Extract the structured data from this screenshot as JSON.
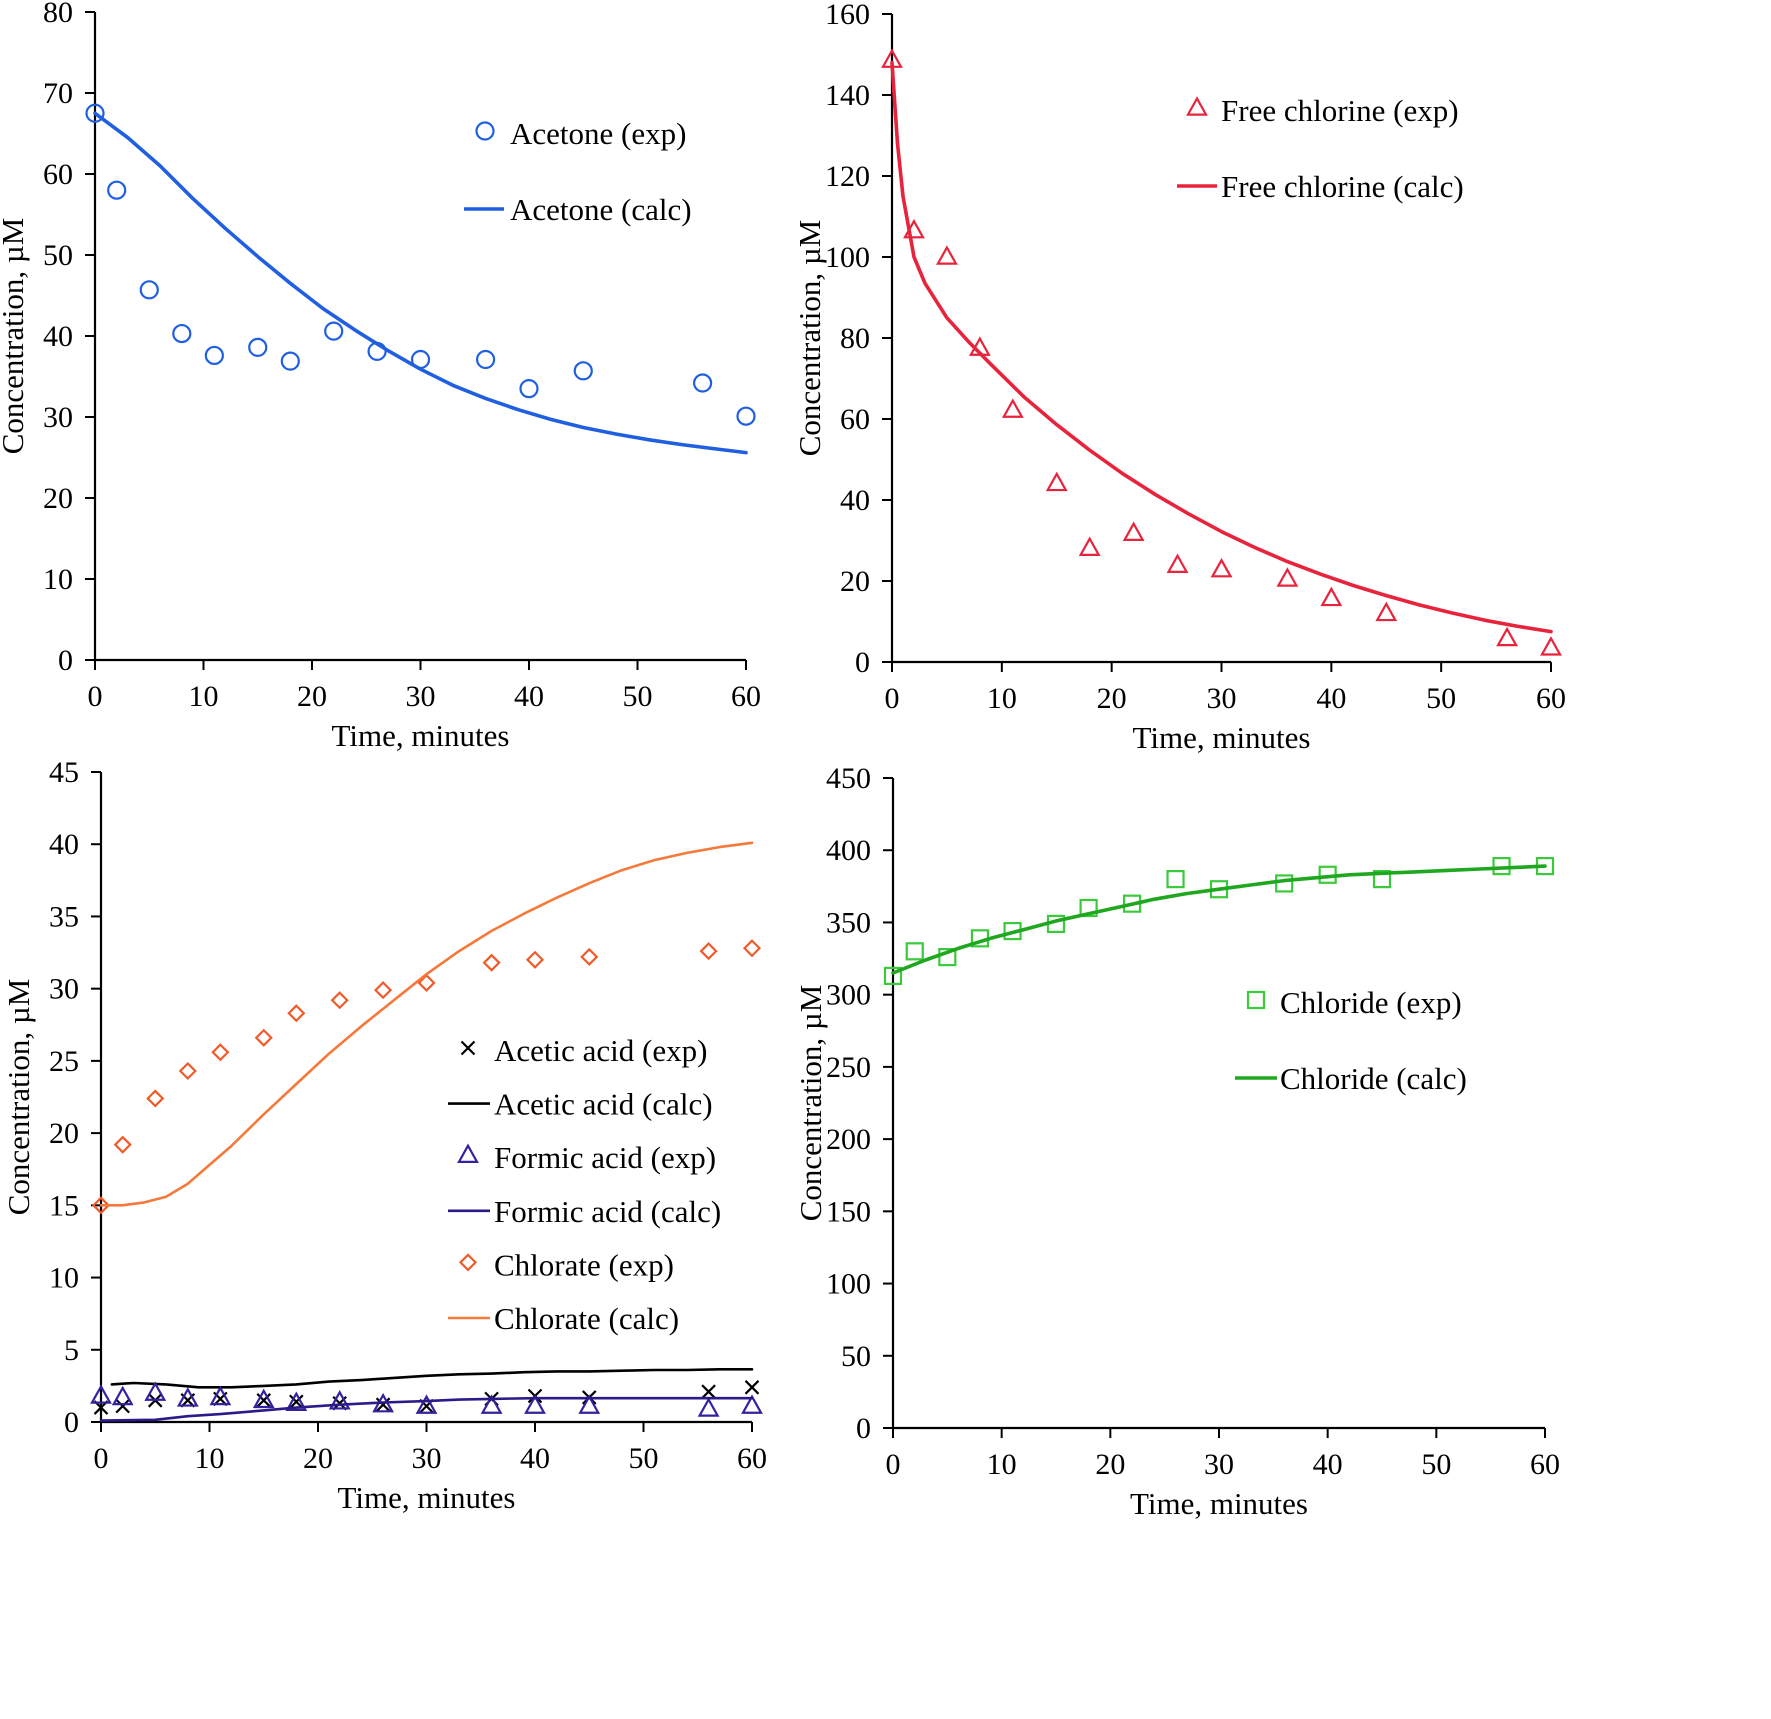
{
  "chart_data": [
    {
      "type": "scatter",
      "xlabel": "Time, minutes",
      "ylabel": "Concentration, µM",
      "xlim": [
        0,
        60
      ],
      "ylim": [
        0,
        80
      ],
      "xticks": [
        0,
        10,
        20,
        30,
        40,
        50,
        60
      ],
      "yticks": [
        0,
        10,
        20,
        30,
        40,
        50,
        60,
        70,
        80
      ],
      "legend_position": "top-right",
      "grid": false,
      "series": [
        {
          "name": "Acetone (exp)",
          "kind": "markers",
          "marker": "circle",
          "color": "#1f5fe0",
          "x": [
            0,
            2,
            5,
            8,
            11,
            15,
            18,
            22,
            26,
            30,
            36,
            40,
            45,
            56,
            60
          ],
          "y": [
            67.5,
            58,
            45.7,
            40.3,
            37.6,
            38.6,
            36.9,
            40.6,
            38.1,
            37.1,
            37.1,
            33.5,
            35.7,
            34.2,
            30.1
          ]
        },
        {
          "name": "Acetone (calc)",
          "kind": "line",
          "color": "#1f5fe0",
          "x": [
            0,
            3,
            6,
            9,
            12,
            15,
            18,
            21,
            24,
            27,
            30,
            33,
            36,
            39,
            42,
            45,
            48,
            51,
            54,
            57,
            60
          ],
          "y": [
            67.5,
            64.5,
            61,
            57,
            53.3,
            49.8,
            46.5,
            43.4,
            40.7,
            38.2,
            35.9,
            33.9,
            32.3,
            30.9,
            29.7,
            28.7,
            27.9,
            27.2,
            26.6,
            26.1,
            25.6
          ]
        }
      ]
    },
    {
      "type": "scatter",
      "xlabel": "Time, minutes",
      "ylabel": "Concentration, µM",
      "xlim": [
        0,
        60
      ],
      "ylim": [
        0,
        160
      ],
      "xticks": [
        0,
        10,
        20,
        30,
        40,
        50,
        60
      ],
      "yticks": [
        0,
        20,
        40,
        60,
        80,
        100,
        120,
        140,
        160
      ],
      "legend_position": "top-right",
      "grid": false,
      "series": [
        {
          "name": "Free chlorine (exp)",
          "kind": "markers",
          "marker": "triangle",
          "color": "#e8233c",
          "x": [
            0,
            2,
            5,
            8,
            11,
            15,
            18,
            22,
            26,
            30,
            36,
            40,
            45,
            56,
            60
          ],
          "y": [
            148.6,
            106.5,
            100,
            77.5,
            62.2,
            44.1,
            28.1,
            31.8,
            23.9,
            22.8,
            20.5,
            15.7,
            12,
            5.8,
            3.5
          ]
        },
        {
          "name": "Free chlorine (calc)",
          "kind": "line",
          "color": "#e8233c",
          "x": [
            0,
            0.5,
            1,
            2,
            3,
            5,
            7,
            9,
            12,
            15,
            18,
            21,
            24,
            27,
            30,
            33,
            36,
            39,
            42,
            45,
            48,
            51,
            54,
            57,
            60
          ],
          "y": [
            148,
            128,
            115,
            100,
            93.5,
            85,
            79,
            73.5,
            65.5,
            58.6,
            52.3,
            46.5,
            41.3,
            36.6,
            32.2,
            28.3,
            24.8,
            21.7,
            18.9,
            16.4,
            14.1,
            12.1,
            10.3,
            8.8,
            7.5
          ]
        }
      ]
    },
    {
      "type": "scatter",
      "xlabel": "Time, minutes",
      "ylabel": "Concentration, µM",
      "xlim": [
        0,
        60
      ],
      "ylim": [
        0,
        45
      ],
      "xticks": [
        0,
        10,
        20,
        30,
        40,
        50,
        60
      ],
      "yticks": [
        0,
        5,
        10,
        15,
        20,
        25,
        30,
        35,
        40,
        45
      ],
      "legend_position": "bottom-right",
      "grid": false,
      "series": [
        {
          "name": "Acetic acid (exp)",
          "kind": "markers",
          "marker": "cross",
          "color": "#000000",
          "x": [
            0,
            2,
            5,
            8,
            11,
            15,
            18,
            22,
            26,
            30,
            36,
            40,
            45,
            56,
            60
          ],
          "y": [
            1,
            1.1,
            1.5,
            1.5,
            1.6,
            1.5,
            1.4,
            1.3,
            1.2,
            1.1,
            1.6,
            1.8,
            1.7,
            2.1,
            2.4
          ]
        },
        {
          "name": "Acetic acid (calc)",
          "kind": "line",
          "color": "#000000",
          "x": [
            1,
            3,
            6,
            9,
            12,
            15,
            18,
            21,
            24,
            27,
            30,
            33,
            36,
            39,
            42,
            45,
            48,
            51,
            54,
            57,
            60
          ],
          "y": [
            2.6,
            2.7,
            2.6,
            2.4,
            2.4,
            2.5,
            2.6,
            2.8,
            2.9,
            3.05,
            3.2,
            3.3,
            3.35,
            3.45,
            3.5,
            3.5,
            3.55,
            3.6,
            3.6,
            3.65,
            3.65
          ]
        },
        {
          "name": "Formic acid (exp)",
          "kind": "markers",
          "marker": "triangle",
          "color": "#3322a0",
          "x": [
            0,
            2,
            5,
            8,
            11,
            15,
            18,
            22,
            26,
            30,
            36,
            40,
            45,
            56,
            60
          ],
          "y": [
            1.8,
            1.7,
            2,
            1.6,
            1.7,
            1.5,
            1.3,
            1.4,
            1.2,
            1.1,
            1.1,
            1.1,
            1.1,
            0.9,
            1.1
          ]
        },
        {
          "name": "Formic acid (calc)",
          "kind": "line",
          "color": "#2a1a8a",
          "x": [
            0,
            5,
            8,
            11,
            15,
            18,
            22,
            26,
            30,
            33,
            36,
            40,
            45,
            50,
            55,
            60
          ],
          "y": [
            0.1,
            0.15,
            0.4,
            0.55,
            0.8,
            1,
            1.2,
            1.35,
            1.45,
            1.55,
            1.6,
            1.65,
            1.65,
            1.65,
            1.65,
            1.65
          ]
        },
        {
          "name": "Chlorate (exp)",
          "kind": "markers",
          "marker": "diamond",
          "color": "#f05a28",
          "x": [
            0,
            2,
            5,
            8,
            11,
            15,
            18,
            22,
            26,
            30,
            36,
            40,
            45,
            56,
            60
          ],
          "y": [
            15,
            19.2,
            22.4,
            24.3,
            25.6,
            26.6,
            28.3,
            29.2,
            29.9,
            30.4,
            31.8,
            32,
            32.2,
            32.6,
            32.8
          ]
        },
        {
          "name": "Chlorate (calc)",
          "kind": "line",
          "color": "#f4793a",
          "x": [
            0,
            2,
            4,
            6,
            8,
            10,
            12,
            15,
            18,
            21,
            24,
            27,
            30,
            33,
            36,
            39,
            42,
            45,
            48,
            51,
            54,
            57,
            60
          ],
          "y": [
            15,
            15,
            15.2,
            15.6,
            16.5,
            17.8,
            19.1,
            21.3,
            23.4,
            25.5,
            27.4,
            29.2,
            31,
            32.6,
            34,
            35.2,
            36.3,
            37.3,
            38.2,
            38.9,
            39.4,
            39.8,
            40.1
          ]
        }
      ]
    },
    {
      "type": "scatter",
      "xlabel": "Time, minutes",
      "ylabel": "Concentration, µM",
      "xlim": [
        0,
        60
      ],
      "ylim": [
        0,
        450
      ],
      "xticks": [
        0,
        10,
        20,
        30,
        40,
        50,
        60
      ],
      "yticks": [
        0,
        50,
        100,
        150,
        200,
        250,
        300,
        350,
        400,
        450
      ],
      "legend_position": "center-right",
      "grid": false,
      "series": [
        {
          "name": "Chloride (exp)",
          "kind": "markers",
          "marker": "square",
          "color": "#3ac93a",
          "x": [
            0,
            2,
            5,
            8,
            11,
            15,
            18,
            22,
            26,
            30,
            36,
            40,
            45,
            56,
            60
          ],
          "y": [
            313,
            330,
            326,
            339,
            344,
            349,
            360,
            363,
            380,
            373,
            377,
            383,
            380,
            389,
            389
          ]
        },
        {
          "name": "Chloride (calc)",
          "kind": "line",
          "color": "#1fa81f",
          "x": [
            0,
            3,
            6,
            9,
            12,
            15,
            18,
            21,
            24,
            27,
            30,
            33,
            36,
            39,
            42,
            45,
            48,
            51,
            54,
            57,
            60
          ],
          "y": [
            315,
            324,
            332,
            339,
            345,
            351,
            356,
            361,
            366,
            370,
            373,
            376,
            379,
            381,
            383,
            384,
            385,
            386,
            387,
            388,
            389
          ]
        }
      ]
    }
  ]
}
